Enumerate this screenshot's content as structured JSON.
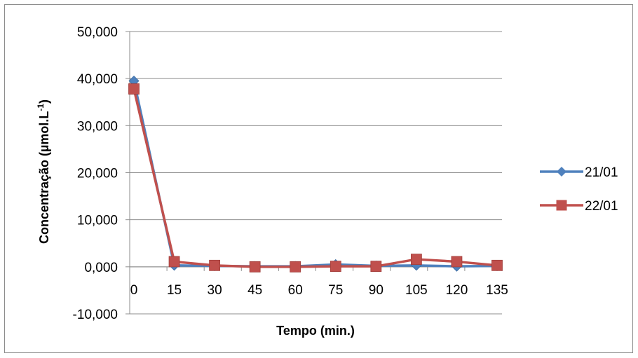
{
  "chart_data": {
    "type": "line",
    "title": "",
    "xlabel": "Tempo (min.)",
    "ylabel": "Concentração (µmol.L",
    "ylabel_superscript": "-1",
    "ylabel_suffix": ")",
    "categories": [
      "0",
      "15",
      "30",
      "45",
      "60",
      "75",
      "90",
      "105",
      "120",
      "135"
    ],
    "ylim": [
      -10000,
      50000
    ],
    "yticks": [
      -10000,
      0,
      10000,
      20000,
      30000,
      40000,
      50000
    ],
    "ytick_labels": [
      "-10,000",
      "0,000",
      "10,000",
      "20,000",
      "30,000",
      "40,000",
      "50,000"
    ],
    "grid": true,
    "legend_position": "right",
    "series": [
      {
        "name": "21/01",
        "color": "#4f81bd",
        "marker": "diamond",
        "values": [
          39500,
          300,
          200,
          100,
          100,
          500,
          200,
          300,
          100,
          200
        ]
      },
      {
        "name": "22/01",
        "color": "#c0504d",
        "marker": "square",
        "values": [
          37800,
          1100,
          300,
          0,
          0,
          100,
          100,
          1600,
          1100,
          300
        ]
      }
    ]
  }
}
